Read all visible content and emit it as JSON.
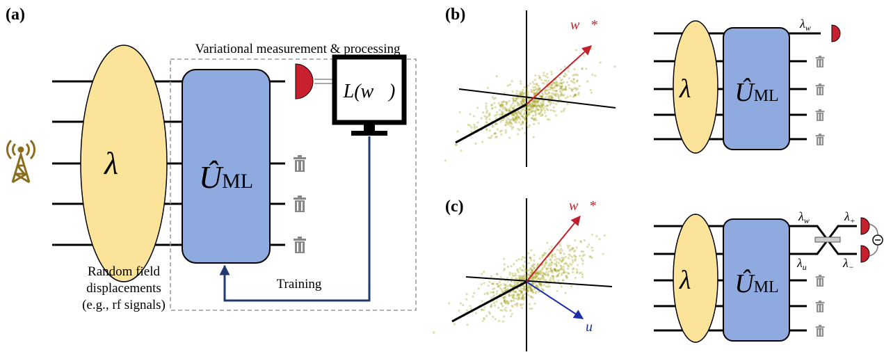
{
  "panel_a": {
    "label": "(a)",
    "box_title": "Variational measurement & processing",
    "field_caption": [
      "Random field",
      "displacements",
      "(e.g., rf signals)"
    ],
    "training": "Training",
    "loss": "L(w⃗)",
    "lambda": "λ⃗",
    "unitary": {
      "symbol": "Û",
      "subscript": "ML"
    }
  },
  "panel_b": {
    "label": "(b)",
    "vector_w": "w⃗*",
    "lambda": "λ⃗",
    "unitary": {
      "symbol": "Û",
      "subscript": "ML"
    },
    "output_w": {
      "symbol": "λ",
      "subscript": "w"
    }
  },
  "panel_c": {
    "label": "(c)",
    "vector_w": "w⃗*",
    "vector_u": "u⃗",
    "lambda": "λ⃗",
    "unitary": {
      "symbol": "Û",
      "subscript": "ML"
    },
    "output_w": {
      "symbol": "λ",
      "subscript": "w"
    },
    "output_u": {
      "symbol": "λ",
      "subscript": "u"
    },
    "output_plus": {
      "symbol": "λ",
      "subscript": "+"
    },
    "output_minus": {
      "symbol": "λ",
      "subscript": "−"
    }
  }
}
